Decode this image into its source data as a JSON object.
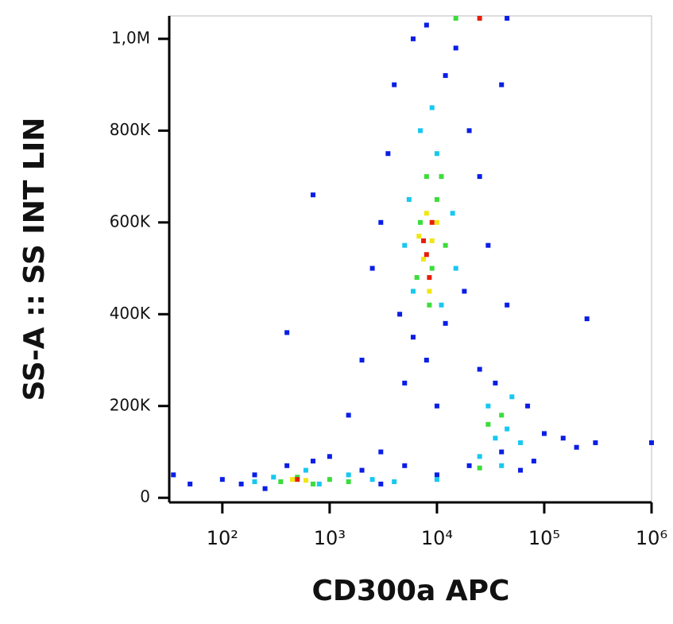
{
  "chart_data": {
    "type": "scatter",
    "x_label": "CD300a APC",
    "y_label": "SS-A :: SS INT LIN",
    "xscale": "log",
    "xlim": [
      32,
      1000000
    ],
    "xticks": [
      {
        "value": 100,
        "label": "10²"
      },
      {
        "value": 1000,
        "label": "10³"
      },
      {
        "value": 10000,
        "label": "10⁴"
      },
      {
        "value": 100000,
        "label": "10⁵"
      },
      {
        "value": 1000000,
        "label": "10⁶"
      }
    ],
    "ylim": [
      -10000,
      1050000
    ],
    "yticks": [
      0,
      {
        "value": 200000,
        "label": "200K"
      },
      {
        "value": 400000,
        "label": "400K"
      },
      {
        "value": 600000,
        "label": "600K"
      },
      {
        "value": 800000,
        "label": "800K"
      },
      {
        "value": 1000000,
        "label": "1,0M"
      }
    ],
    "series": [
      {
        "color": "#0a1ee6",
        "x": [
          4000,
          6000,
          15000,
          3500,
          20000,
          25000,
          3000,
          2500,
          18000,
          4500,
          12000,
          6000,
          30000,
          2000,
          8000,
          5000,
          1500,
          10000,
          25000,
          35000,
          70000,
          150000,
          200000,
          80000,
          60000,
          100000,
          40000,
          20000,
          10000,
          5000,
          3000,
          2000,
          1000,
          700,
          400,
          200,
          150,
          250,
          100,
          50,
          35,
          700,
          400,
          3000,
          8000,
          12000,
          40000,
          250000,
          300000,
          45000,
          1000000,
          45000
        ],
        "values": [
          900000,
          1000000,
          980000,
          750000,
          800000,
          700000,
          600000,
          500000,
          450000,
          400000,
          380000,
          350000,
          550000,
          300000,
          300000,
          250000,
          180000,
          200000,
          280000,
          250000,
          200000,
          130000,
          110000,
          80000,
          60000,
          140000,
          100000,
          70000,
          50000,
          70000,
          30000,
          60000,
          90000,
          80000,
          70000,
          50000,
          30000,
          20000,
          40000,
          30000,
          50000,
          660000,
          360000,
          100000,
          1030000,
          920000,
          900000,
          390000,
          120000,
          420000,
          120000,
          1050000
        ]
      },
      {
        "color": "#18c8f0",
        "x": [
          7000,
          10000,
          5500,
          14000,
          6000,
          11000,
          9000,
          5000,
          15000,
          30000,
          45000,
          60000,
          35000,
          50000,
          25000,
          40000,
          1500,
          800,
          300,
          2500,
          4000,
          200,
          600,
          10000
        ],
        "values": [
          800000,
          750000,
          650000,
          620000,
          450000,
          420000,
          850000,
          550000,
          500000,
          200000,
          150000,
          120000,
          130000,
          220000,
          90000,
          70000,
          50000,
          30000,
          45000,
          40000,
          35000,
          35000,
          60000,
          40000
        ]
      },
      {
        "color": "#3cdc3c",
        "x": [
          8000,
          10000,
          7000,
          9000,
          12000,
          6500,
          11000,
          8500,
          40000,
          30000,
          500,
          350,
          1000,
          700,
          1500,
          25000,
          15000
        ],
        "values": [
          700000,
          650000,
          600000,
          500000,
          550000,
          480000,
          700000,
          420000,
          180000,
          160000,
          45000,
          35000,
          40000,
          30000,
          35000,
          65000,
          1050000
        ]
      },
      {
        "color": "#f0e614",
        "x": [
          8000,
          9000,
          7500,
          10000,
          450,
          600,
          8500,
          6800
        ],
        "values": [
          620000,
          560000,
          520000,
          600000,
          40000,
          38000,
          450000,
          570000
        ]
      },
      {
        "color": "#e61e0a",
        "x": [
          8000,
          8500,
          7500,
          500,
          9000,
          25000
        ],
        "values": [
          530000,
          480000,
          560000,
          40000,
          600000,
          1050000
        ]
      }
    ]
  }
}
